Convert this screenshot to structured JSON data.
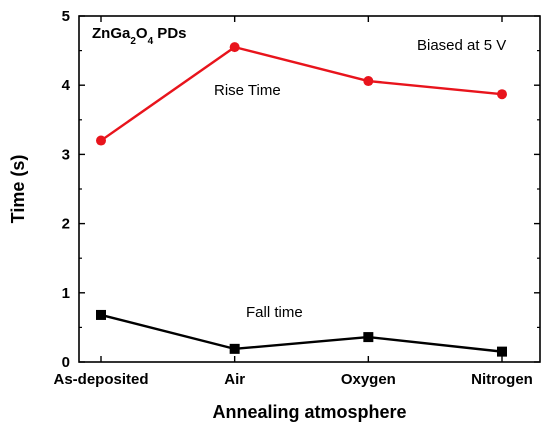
{
  "chart_data": {
    "type": "line",
    "categories": [
      "As-deposited",
      "Air",
      "Oxygen",
      "Nitrogen"
    ],
    "xlabel": "Annealing atmosphere",
    "ylabel": "Time (s)",
    "ylim": [
      0,
      5
    ],
    "yticks": [
      "0",
      "1",
      "2",
      "3",
      "4",
      "5"
    ],
    "grid": false,
    "series": [
      {
        "name": "Rise Time",
        "color": "#e8141c",
        "marker": "circle",
        "values": [
          3.2,
          4.55,
          4.06,
          3.87
        ]
      },
      {
        "name": "Fall time",
        "color": "#000000",
        "marker": "square",
        "values": [
          0.68,
          0.19,
          0.36,
          0.15
        ]
      }
    ],
    "annotations": {
      "device": {
        "base": "ZnGa",
        "sub1": "2",
        "mid": "O",
        "sub2": "4",
        "tail": " PDs"
      },
      "bias": "Biased at 5 V"
    }
  }
}
